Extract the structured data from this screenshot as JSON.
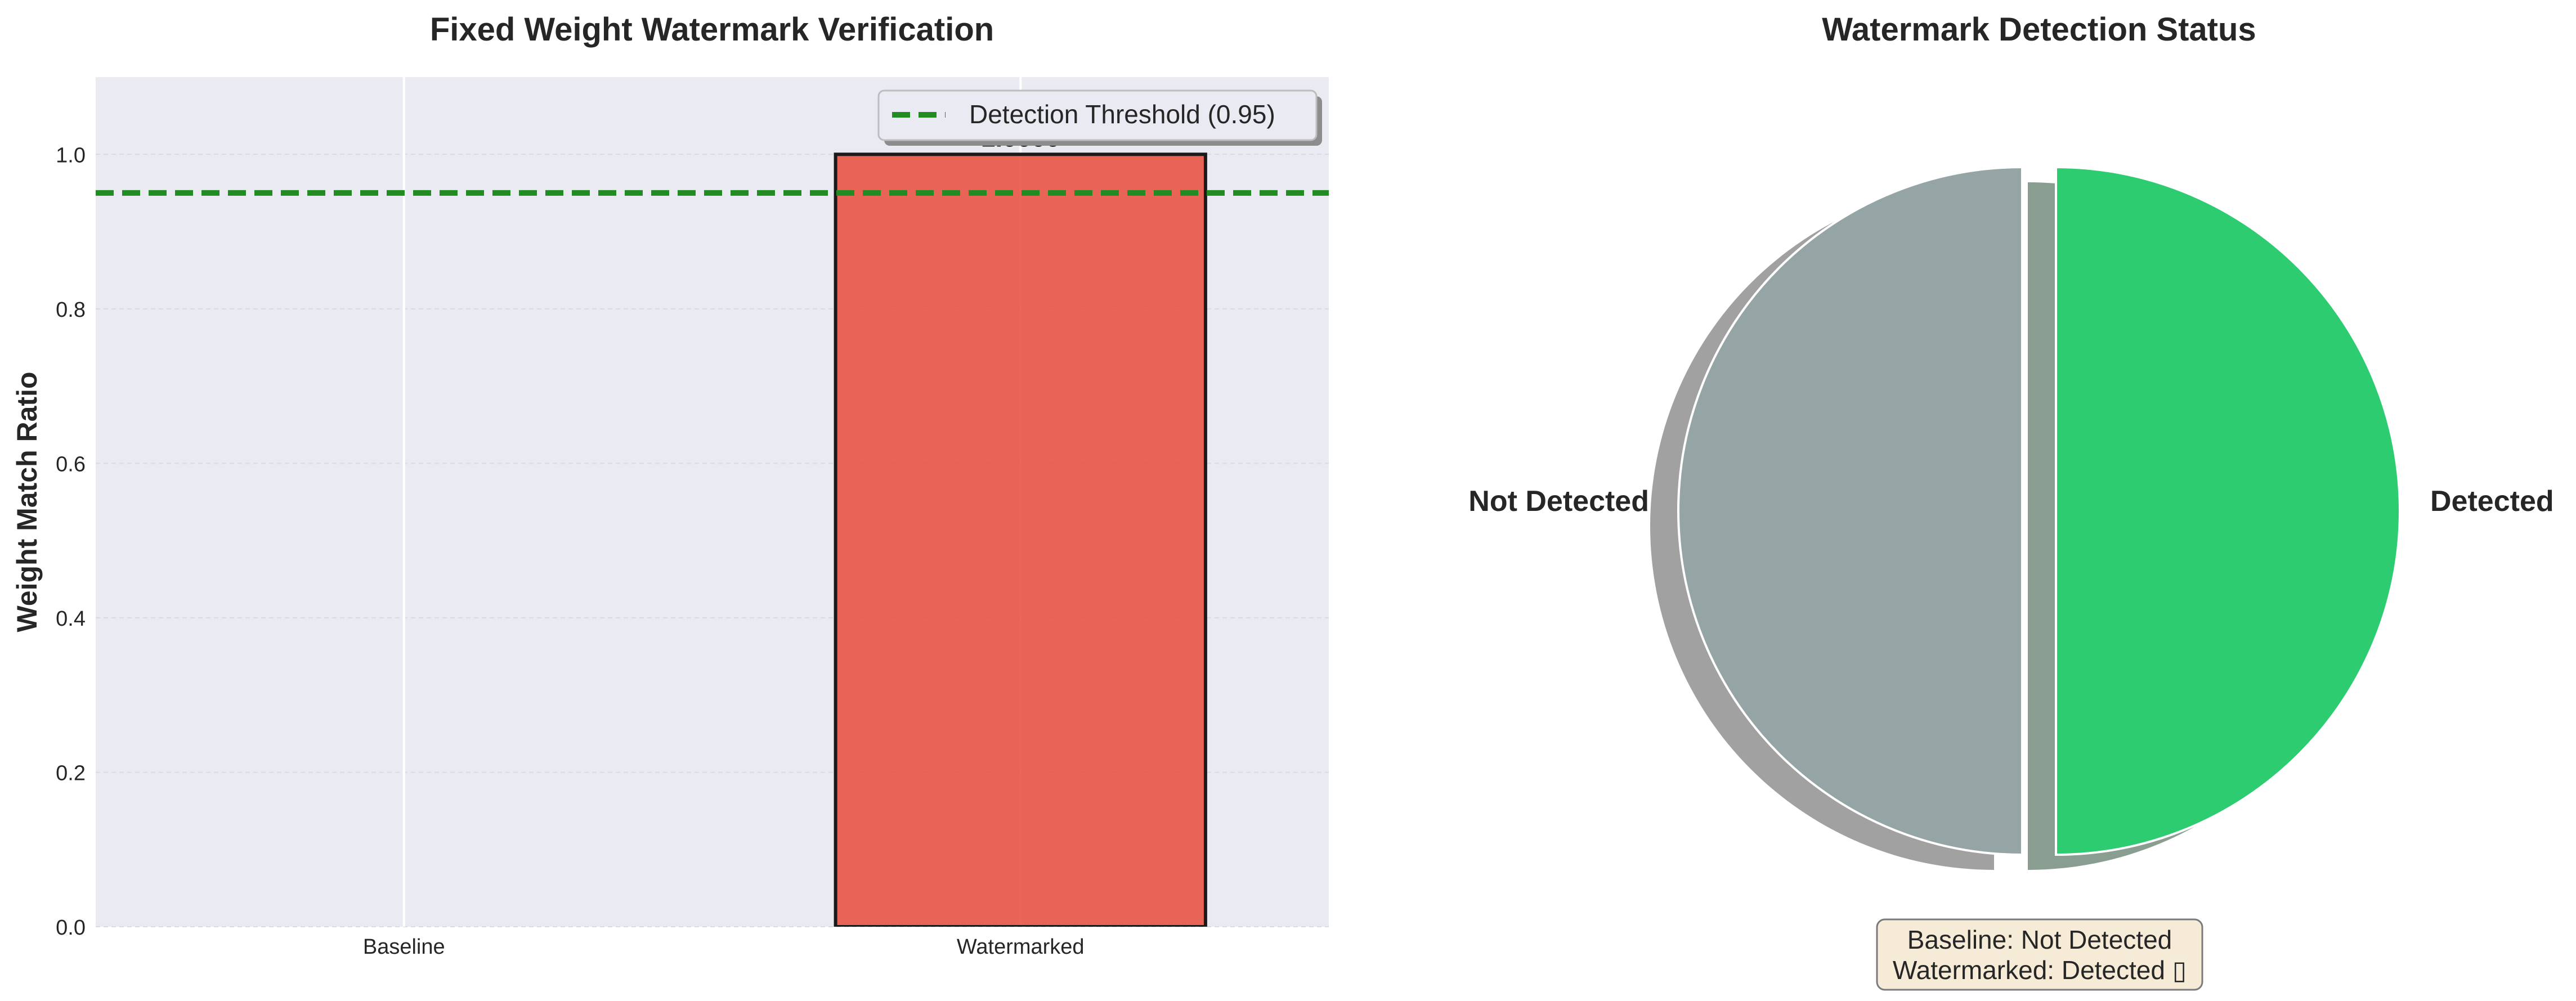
{
  "chart_data": [
    {
      "type": "bar",
      "title": "Fixed Weight Watermark Verification",
      "xlabel": "",
      "ylabel": "Weight Match Ratio",
      "categories": [
        "Baseline",
        "Watermarked"
      ],
      "values": [
        0.0,
        1.0
      ],
      "bar_colors": [
        "#3498db",
        "#e74c3c"
      ],
      "data_labels": [
        "",
        "1.0000"
      ],
      "ylim": [
        0,
        1.1
      ],
      "yticks": [
        0.0,
        0.2,
        0.4,
        0.6,
        0.8,
        1.0
      ],
      "ytick_labels": [
        "0.0",
        "0.2",
        "0.4",
        "0.6",
        "0.8",
        "1.0"
      ],
      "threshold": {
        "value": 0.95,
        "label": "Detection Threshold (0.95)",
        "color": "#228b22",
        "style": "dashed"
      },
      "legend_position": "top-right",
      "grid": true,
      "background": "#eaeaf2"
    },
    {
      "type": "pie",
      "title": "Watermark Detection Status",
      "slices": [
        {
          "label": "Not Detected",
          "value": 50,
          "color": "#95a5a6",
          "exploded": true
        },
        {
          "label": "Detected",
          "value": 50,
          "color": "#2ecc71",
          "exploded": true
        }
      ],
      "shadow": true,
      "annotation": [
        "Baseline: Not Detected",
        "Watermarked: Detected ▯"
      ],
      "annotation_bg": "#f5ebd7"
    }
  ]
}
